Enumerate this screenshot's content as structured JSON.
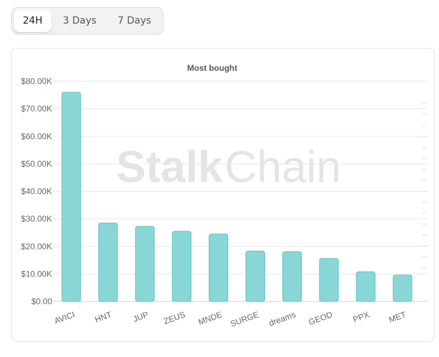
{
  "tabs": {
    "items": [
      {
        "label": "24H",
        "active": true
      },
      {
        "label": "3 Days",
        "active": false
      },
      {
        "label": "7 Days",
        "active": false
      }
    ]
  },
  "watermark": {
    "part1": "Stalk",
    "part2": "Chain"
  },
  "colors": {
    "bar_fill": "#89d6d6",
    "bar_stroke": "#5fc3c3",
    "grid": "#e6e6e6",
    "axis_text": "#666666",
    "title_text": "#555555"
  },
  "chart_data": {
    "type": "bar",
    "title": "Most bought",
    "xlabel": "",
    "ylabel": "",
    "categories": [
      "AVICI",
      "HNT",
      "JUP",
      "ZEUS",
      "MNDE",
      "SURGE",
      "dreams",
      "GEOD",
      "PPX",
      "MET"
    ],
    "values": [
      76000,
      28500,
      27300,
      25500,
      24500,
      18300,
      18100,
      15600,
      10800,
      9600
    ],
    "ylim": [
      0,
      80000
    ],
    "yticks": [
      0,
      10000,
      20000,
      30000,
      40000,
      50000,
      60000,
      70000,
      80000
    ],
    "ytick_labels": [
      "$0.00",
      "$10.00K",
      "$20.00K",
      "$30.00K",
      "$40.00K",
      "$50.00K",
      "$60.00K",
      "$70.00K",
      "$80.00K"
    ],
    "grid": true,
    "legend": false
  }
}
